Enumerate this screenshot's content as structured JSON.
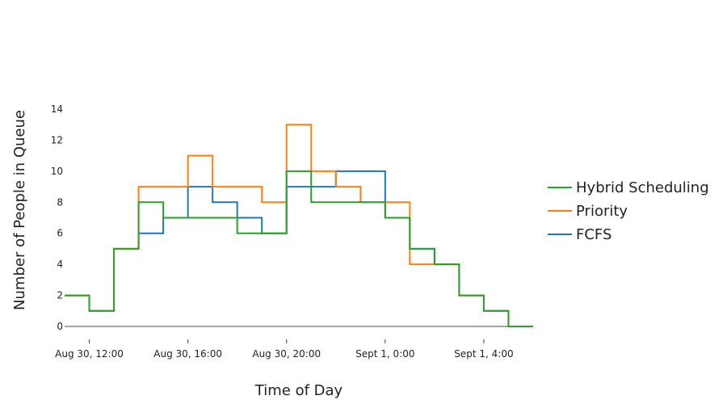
{
  "chart_data": {
    "type": "line",
    "step": "hv",
    "xlabel": "Time of Day",
    "ylabel": "Number of People in Queue",
    "ylim": [
      0,
      14
    ],
    "yticks": [
      0,
      2,
      4,
      6,
      8,
      10,
      12,
      14
    ],
    "xtick_labels": [
      "Aug 30, 12:00",
      "Aug 30, 16:00",
      "Aug 30, 20:00",
      "Sept 1, 0:00",
      "Sept 1, 4:00"
    ],
    "xtick_hours": [
      12,
      16,
      20,
      24,
      28
    ],
    "xlim_hours": [
      11,
      30
    ],
    "grid": false,
    "legend_position": "right",
    "x_hours": [
      11,
      12,
      13,
      14,
      15,
      16,
      17,
      18,
      19,
      20,
      21,
      22,
      23,
      24,
      25,
      26,
      27,
      28,
      29,
      30
    ],
    "series": [
      {
        "name": "Hybrid Scheduling",
        "color": "#2ca02c",
        "values": [
          2,
          1,
          5,
          8,
          7,
          7,
          7,
          6,
          6,
          10,
          8,
          8,
          8,
          7,
          5,
          4,
          2,
          1,
          0,
          0
        ]
      },
      {
        "name": "Priority",
        "color": "#ff7f0e",
        "values": [
          2,
          1,
          5,
          9,
          9,
          11,
          9,
          9,
          8,
          13,
          10,
          9,
          8,
          8,
          4,
          4,
          2,
          1,
          0,
          0
        ]
      },
      {
        "name": "FCFS",
        "color": "#1f77b4",
        "values": [
          2,
          1,
          5,
          6,
          7,
          9,
          8,
          7,
          6,
          9,
          9,
          10,
          10,
          7,
          5,
          4,
          2,
          1,
          0,
          0
        ]
      }
    ]
  }
}
